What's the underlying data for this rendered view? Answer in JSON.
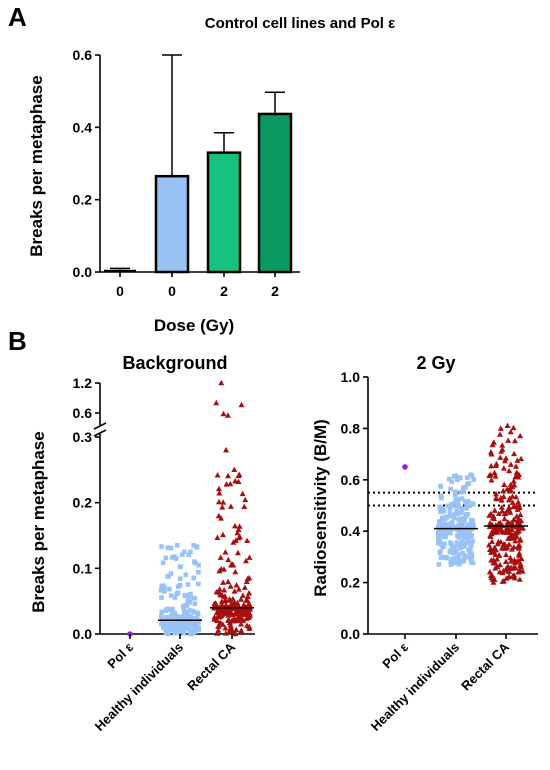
{
  "chart_data": [
    {
      "panel": "A",
      "type": "bar",
      "title": "Control cell lines and Pol ε",
      "xlabel": "Dose (Gy)",
      "ylabel": "Breaks per metaphase",
      "ylim": [
        0,
        0.6
      ],
      "yticks": [
        "0.0",
        "0.2",
        "0.4",
        "0.6"
      ],
      "categories": [
        "0",
        "0",
        "2",
        "2"
      ],
      "values": [
        0.0,
        0.265,
        0.33,
        0.437
      ],
      "error_upper": [
        0.01,
        0.6,
        0.385,
        0.497
      ],
      "colors": [
        "#ffffff",
        "#99c2f5",
        "#12c27e",
        "#0b9a62"
      ],
      "grid": false
    },
    {
      "panel": "B",
      "type": "scatter",
      "title": "Background",
      "ylabel": "Breaks per metaphase",
      "categories": [
        "Pol ε",
        "Healthy individuals",
        "Rectal CA"
      ],
      "yticks_lower": [
        "0.0",
        "0.1",
        "0.2",
        "0.3"
      ],
      "yticks_upper": [
        "0.6",
        "1.2"
      ],
      "axis_break": [
        0.3,
        0.4
      ],
      "medians": [
        0.0,
        0.021,
        0.04
      ],
      "series": [
        {
          "category": "Pol ε",
          "color": "#9b1ee0",
          "marker": "circle",
          "n": 1,
          "min": 0.0,
          "max": 0.0
        },
        {
          "category": "Healthy individuals",
          "color": "#99c2f5",
          "marker": "square",
          "n": 260,
          "min": 0.0,
          "max": 0.135
        },
        {
          "category": "Rectal CA",
          "color": "#a80f0f",
          "marker": "triangle",
          "n": 240,
          "min": 0.0,
          "max": 1.2,
          "outliers": [
            0.28,
            0.55,
            0.58,
            0.76,
            0.8,
            1.2
          ]
        }
      ]
    },
    {
      "panel": "B",
      "type": "scatter",
      "title": "2 Gy",
      "ylabel": "Radiosensitivity (B/M)",
      "ylim": [
        0,
        1.0
      ],
      "yticks": [
        "0.0",
        "0.2",
        "0.4",
        "0.6",
        "0.8",
        "1.0"
      ],
      "categories": [
        "Pol ε",
        "Healthy individuals",
        "Rectal CA"
      ],
      "medians": [
        0.65,
        0.41,
        0.42
      ],
      "reference_lines": [
        0.5,
        0.55
      ],
      "series": [
        {
          "category": "Pol ε",
          "color": "#9b1ee0",
          "marker": "circle",
          "n": 1,
          "min": 0.65,
          "max": 0.65
        },
        {
          "category": "Healthy individuals",
          "color": "#99c2f5",
          "marker": "square",
          "n": 260,
          "min": 0.27,
          "max": 0.62
        },
        {
          "category": "Rectal CA",
          "color": "#a80f0f",
          "marker": "triangle",
          "n": 240,
          "min": 0.2,
          "max": 0.81
        }
      ]
    }
  ],
  "labels": {
    "panel_a": "A",
    "panel_b": "B"
  }
}
